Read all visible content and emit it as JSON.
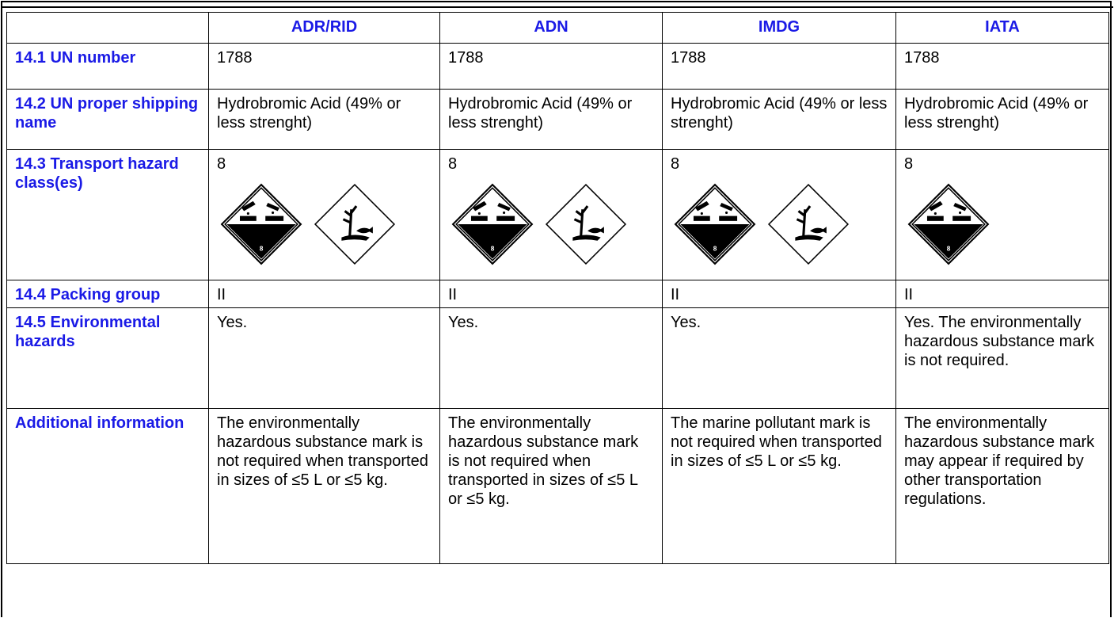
{
  "table": {
    "columns": [
      "ADR/RID",
      "ADN",
      "IMDG",
      "IATA"
    ],
    "rows": [
      {
        "label": "14.1 UN number",
        "cells": [
          "1788",
          "1788",
          "1788",
          "1788"
        ]
      },
      {
        "label": "14.2 UN proper shipping name",
        "cells": [
          "Hydrobromic Acid (49% or less strenght)",
          "Hydrobromic Acid (49% or less strenght)",
          "Hydrobromic Acid (49% or less strenght)",
          "Hydrobromic Acid (49% or less strenght)"
        ]
      },
      {
        "label": "14.3 Transport hazard class(es)",
        "cells": [
          "8",
          "8",
          "8",
          "8"
        ],
        "environmental_pictogram": [
          true,
          true,
          true,
          false
        ]
      },
      {
        "label": "14.4 Packing group",
        "cells": [
          "II",
          "II",
          "II",
          "II"
        ]
      },
      {
        "label": "14.5 Environmental hazards",
        "cells": [
          "Yes.",
          "Yes.",
          "Yes.",
          "Yes. The environmentally hazardous substance mark is not required."
        ]
      },
      {
        "label": "Additional information",
        "cells": [
          "The environmentally hazardous substance mark is not required when transported in sizes of ≤5 L or ≤5 kg.",
          "The environmentally hazardous substance mark is not required when transported in sizes of ≤5 L or ≤5 kg.",
          "The marine pollutant mark is not required when transported in sizes of ≤5 L or ≤5 kg.",
          "The environmentally hazardous substance mark may appear if required by other transportation regulations."
        ]
      }
    ]
  }
}
